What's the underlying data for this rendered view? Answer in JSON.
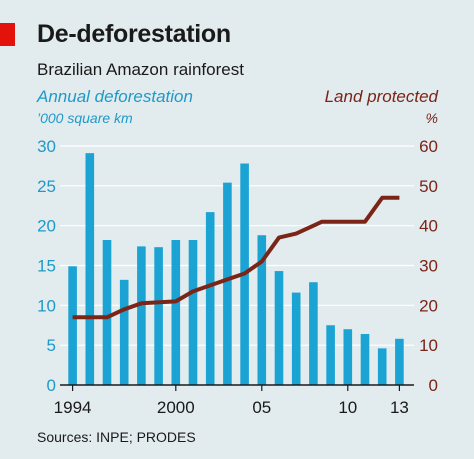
{
  "header": {
    "title": "De-deforestation",
    "subtitle": "Brazilian Amazon rainforest",
    "left_axis_title": "Annual deforestation",
    "left_axis_unit": "’000 square km",
    "right_axis_title": "Land protected",
    "right_axis_unit": "%"
  },
  "source": "Sources: INPE; PRODES",
  "colors": {
    "background": "#e2ebee",
    "bars": "#1aa3d3",
    "line": "#7b2418",
    "grid": "#ffffff",
    "left_axis_text": "#1e9ac9",
    "right_axis_text": "#7b2418",
    "accent": "#e3120b"
  },
  "chart_data": {
    "type": "bar+line",
    "title": "De-deforestation",
    "subtitle": "Brazilian Amazon rainforest",
    "categories": [
      1994,
      1995,
      1996,
      1997,
      1998,
      1999,
      2000,
      2001,
      2002,
      2003,
      2004,
      2005,
      2006,
      2007,
      2008,
      2009,
      2010,
      2011,
      2012,
      2013
    ],
    "x_tick_labels": [
      "1994",
      "2000",
      "05",
      "10",
      "13"
    ],
    "x_tick_years": [
      1994,
      2000,
      2005,
      2010,
      2013
    ],
    "left_axis": {
      "label": "Annual deforestation",
      "unit": "’000 square km",
      "ylim": [
        0,
        30
      ],
      "ticks": [
        "0",
        "5",
        "10",
        "15",
        "20",
        "25",
        "30"
      ]
    },
    "right_axis": {
      "label": "Land protected",
      "unit": "%",
      "ylim": [
        0,
        60
      ],
      "ticks": [
        "0",
        "10",
        "20",
        "30",
        "40",
        "50",
        "60"
      ]
    },
    "series": [
      {
        "name": "Annual deforestation",
        "type": "bar",
        "axis": "left",
        "values": [
          14.9,
          29.1,
          18.2,
          13.2,
          17.4,
          17.3,
          18.2,
          18.2,
          21.7,
          25.4,
          27.8,
          18.8,
          14.3,
          11.6,
          12.9,
          7.5,
          7.0,
          6.4,
          4.6,
          5.8
        ]
      },
      {
        "name": "Land protected",
        "type": "line",
        "axis": "right",
        "points": [
          [
            1994,
            17
          ],
          [
            1996,
            17
          ],
          [
            1997,
            19
          ],
          [
            1998,
            20.5
          ],
          [
            2000,
            21
          ],
          [
            2001,
            23.5
          ],
          [
            2002,
            25
          ],
          [
            2003,
            26.5
          ],
          [
            2004,
            28
          ],
          [
            2005,
            31
          ],
          [
            2006,
            37
          ],
          [
            2007,
            38
          ],
          [
            2008,
            40
          ],
          [
            2008.5,
            41
          ],
          [
            2010,
            41
          ],
          [
            2011,
            41
          ],
          [
            2012,
            47
          ],
          [
            2013,
            47
          ]
        ]
      }
    ],
    "grid": true,
    "legend": "none"
  }
}
